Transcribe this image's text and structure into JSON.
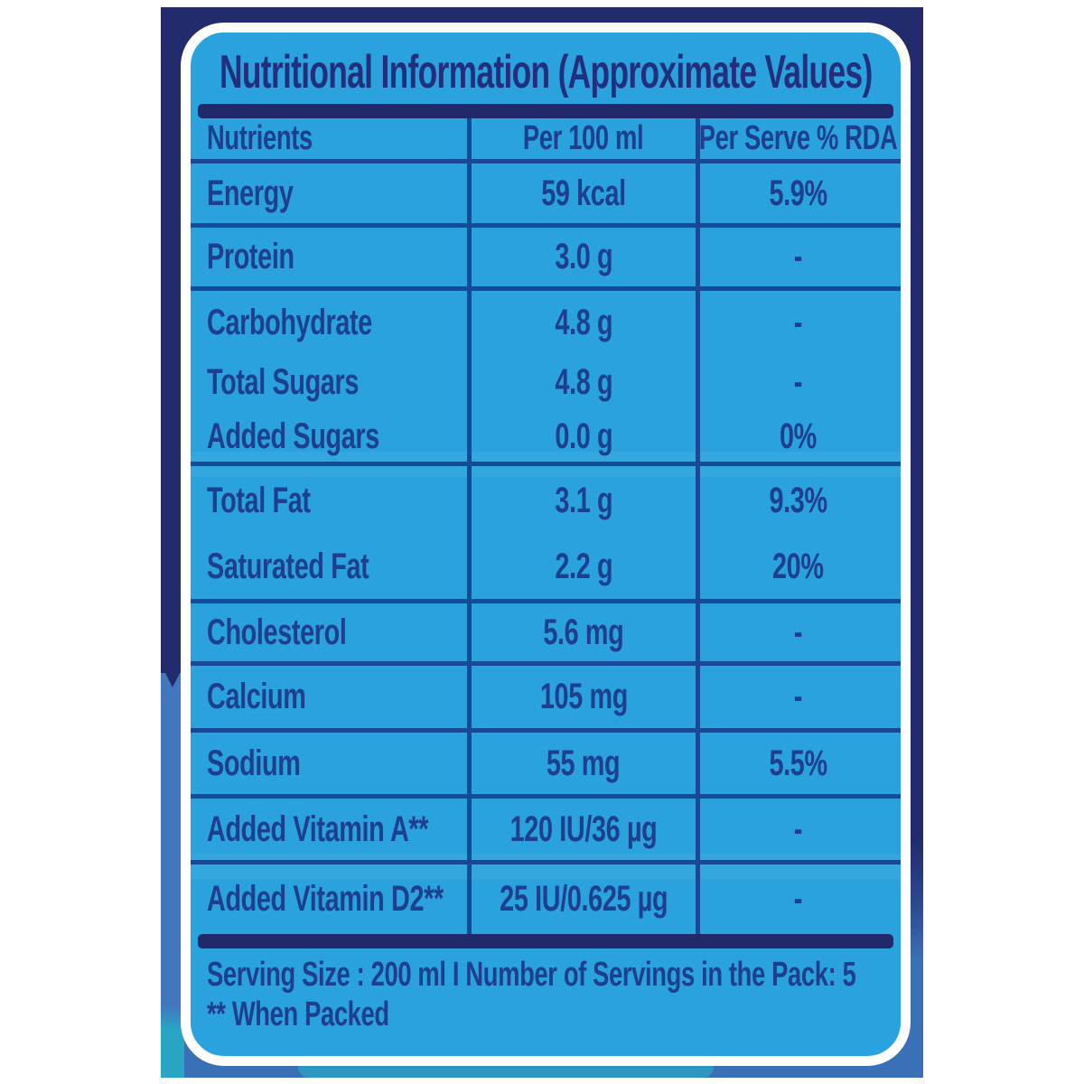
{
  "label": {
    "title": "Nutritional Information (Approximate Values)",
    "table": {
      "columns": [
        "Nutrients",
        "Per 100 ml",
        "Per Serve % RDA"
      ],
      "rows": [
        {
          "nutrient": "Energy",
          "per_100ml": "59 kcal",
          "per_serve_rda": "5.9%",
          "divider_below": true
        },
        {
          "nutrient": "Protein",
          "per_100ml": "3.0 g",
          "per_serve_rda": "-",
          "divider_below": true
        },
        {
          "nutrient": "Carbohydrate",
          "per_100ml": "4.8 g",
          "per_serve_rda": "-",
          "divider_below": false
        },
        {
          "nutrient": "Total Sugars",
          "per_100ml": "4.8 g",
          "per_serve_rda": "-",
          "divider_below": false
        },
        {
          "nutrient": "Added Sugars",
          "per_100ml": "0.0 g",
          "per_serve_rda": "0%",
          "divider_below": true
        },
        {
          "nutrient": "Total Fat",
          "per_100ml": "3.1 g",
          "per_serve_rda": "9.3%",
          "divider_below": false
        },
        {
          "nutrient": "Saturated Fat",
          "per_100ml": "2.2 g",
          "per_serve_rda": "20%",
          "divider_below": true
        },
        {
          "nutrient": "Cholesterol",
          "per_100ml": "5.6 mg",
          "per_serve_rda": "-",
          "divider_below": true
        },
        {
          "nutrient": "Calcium",
          "per_100ml": "105 mg",
          "per_serve_rda": "-",
          "divider_below": true
        },
        {
          "nutrient": "Sodium",
          "per_100ml": "55 mg",
          "per_serve_rda": "5.5%",
          "divider_below": true
        },
        {
          "nutrient": "Added Vitamin A**",
          "per_100ml": "120 IU/36 µg",
          "per_serve_rda": "-",
          "divider_below": true
        },
        {
          "nutrient": "Added Vitamin D2**",
          "per_100ml": "25 IU/0.625 µg",
          "per_serve_rda": "-",
          "divider_below": false
        }
      ]
    },
    "footer": {
      "line1": "Serving Size : 200 ml I Number of Servings in the Pack: 5",
      "line2": "** When Packed"
    },
    "colors": {
      "card_fill": "#29a2de",
      "navy": "#222c6d",
      "text_blue": "#1d3f8e",
      "grid_line": "#174a96",
      "band_blue": "#3a70b6",
      "teal": "#2aa4c3",
      "border_white": "#ffffff"
    }
  }
}
